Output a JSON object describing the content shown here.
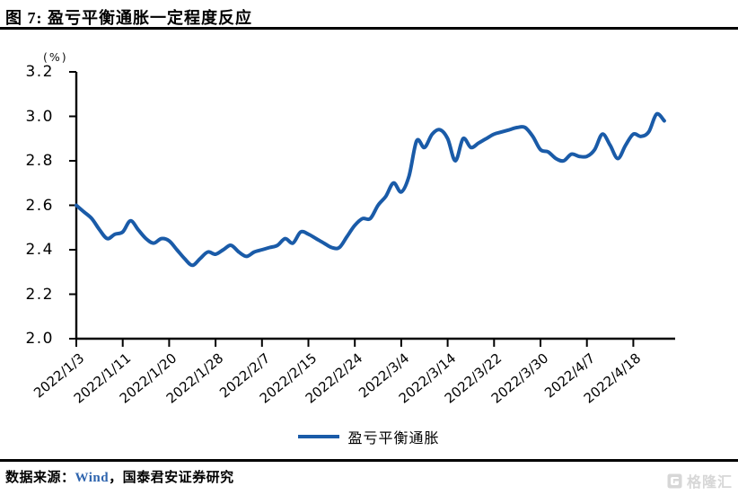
{
  "title": "图 7: 盈亏平衡通胀一定程度反应",
  "chart_data": {
    "type": "line",
    "title": "图 7: 盈亏平衡通胀一定程度反应",
    "unit_label": "(%)",
    "ylim": [
      2.0,
      3.2
    ],
    "y_ticks": [
      "2.0",
      "2.2",
      "2.4",
      "2.6",
      "2.8",
      "3.0",
      "3.2"
    ],
    "x_tick_labels": [
      "2022/1/3",
      "2022/1/11",
      "2022/1/20",
      "2022/1/28",
      "2022/2/7",
      "2022/2/15",
      "2022/2/24",
      "2022/3/4",
      "2022/3/14",
      "2022/3/22",
      "2022/3/30",
      "2022/4/7",
      "2022/4/18"
    ],
    "x_tick_interval": 6,
    "grid": false,
    "legend_position": "bottom",
    "series": [
      {
        "name": "盈亏平衡通胀",
        "color": "#1A5BA8",
        "values": [
          2.6,
          2.57,
          2.54,
          2.49,
          2.45,
          2.47,
          2.48,
          2.53,
          2.49,
          2.45,
          2.43,
          2.45,
          2.44,
          2.4,
          2.36,
          2.33,
          2.36,
          2.39,
          2.38,
          2.4,
          2.42,
          2.39,
          2.37,
          2.39,
          2.4,
          2.41,
          2.42,
          2.45,
          2.43,
          2.48,
          2.47,
          2.45,
          2.43,
          2.41,
          2.41,
          2.46,
          2.51,
          2.54,
          2.54,
          2.6,
          2.64,
          2.7,
          2.66,
          2.73,
          2.89,
          2.86,
          2.92,
          2.94,
          2.9,
          2.8,
          2.9,
          2.86,
          2.88,
          2.9,
          2.92,
          2.93,
          2.94,
          2.95,
          2.95,
          2.91,
          2.85,
          2.84,
          2.81,
          2.8,
          2.83,
          2.82,
          2.82,
          2.85,
          2.92,
          2.87,
          2.81,
          2.87,
          2.92,
          2.91,
          2.93,
          3.01,
          2.98
        ]
      }
    ]
  },
  "legend": {
    "label": "盈亏平衡通胀"
  },
  "footer": {
    "prefix": "数据来源：",
    "source": "Wind",
    "suffix": "，国泰君安证券研究"
  },
  "watermark": {
    "text": "格隆汇"
  },
  "colors": {
    "line": "#1A5BA8",
    "wind_blue": "#2E64AE",
    "axis": "#000000",
    "watermark_gray": "#d7d7d7"
  }
}
